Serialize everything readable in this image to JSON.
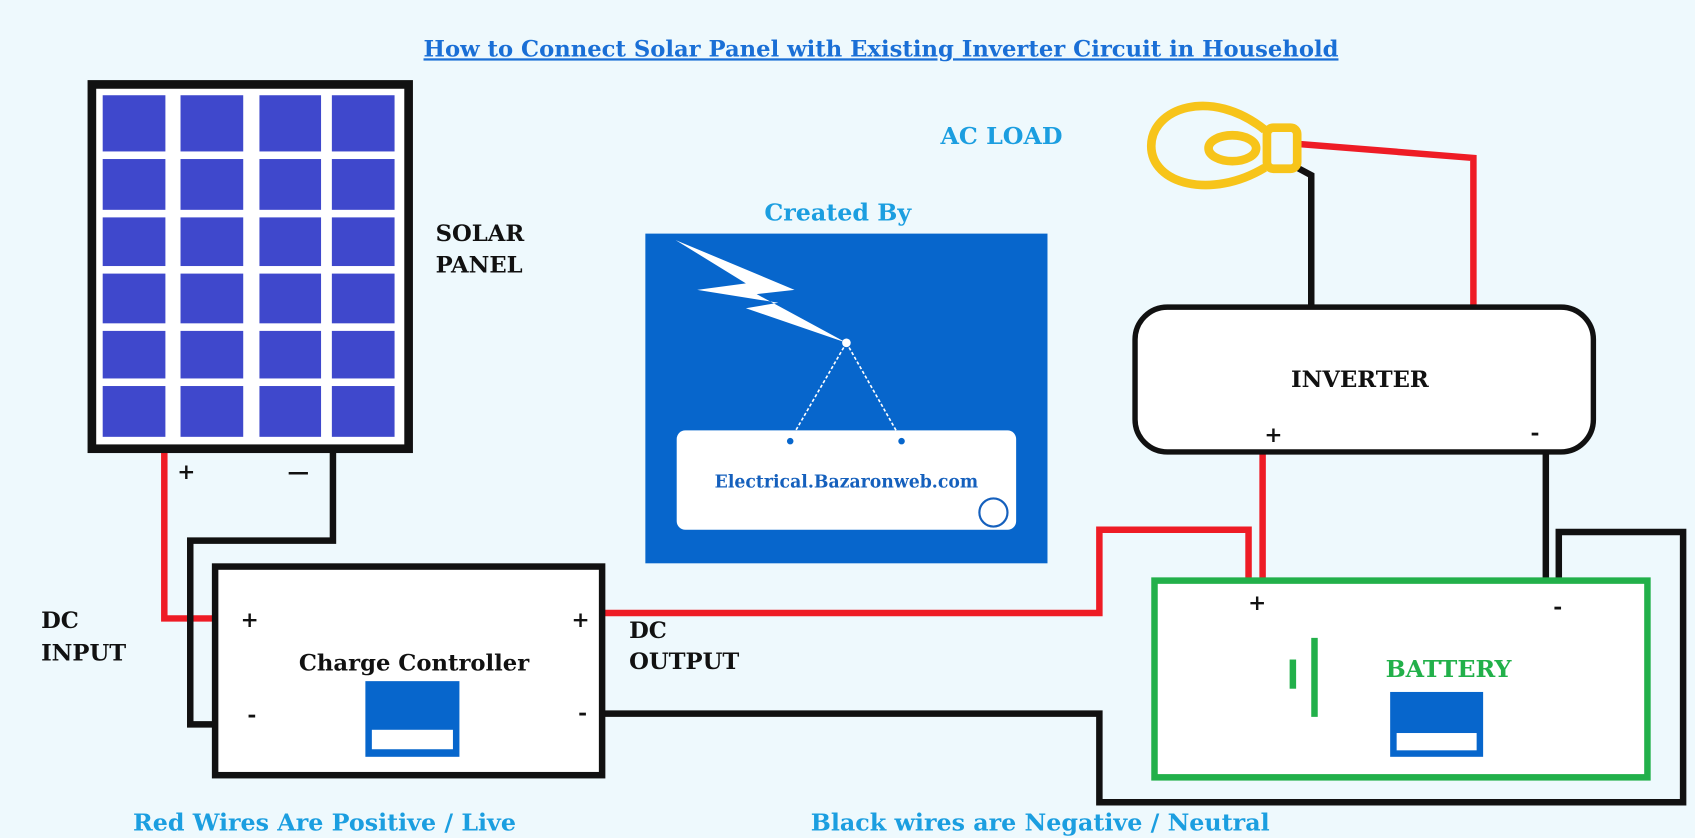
{
  "title": "How to Connect Solar Panel with Existing Inverter Circuit in Household",
  "solar_panel": {
    "label": [
      "SOLAR",
      "PANEL"
    ],
    "positive": "+",
    "negative": "—"
  },
  "ac_load": {
    "label": "AC LOAD"
  },
  "logo": {
    "caption": "Created By",
    "site": "Electrical.Bazaronweb.com"
  },
  "inverter": {
    "label": "INVERTER",
    "positive": "+",
    "negative": "-"
  },
  "charge_controller": {
    "label": "Charge Controller",
    "input_positive": "+",
    "input_negative": "-",
    "output_positive": "+",
    "output_negative": "-"
  },
  "dc_input": [
    "DC",
    "INPUT"
  ],
  "dc_output": [
    "DC",
    "OUTPUT"
  ],
  "battery": {
    "label": "BATTERY",
    "positive": "+",
    "negative": "-"
  },
  "legend": {
    "red": "Red Wires Are Positive / Live",
    "black": "Black wires are Negative / Neutral"
  }
}
